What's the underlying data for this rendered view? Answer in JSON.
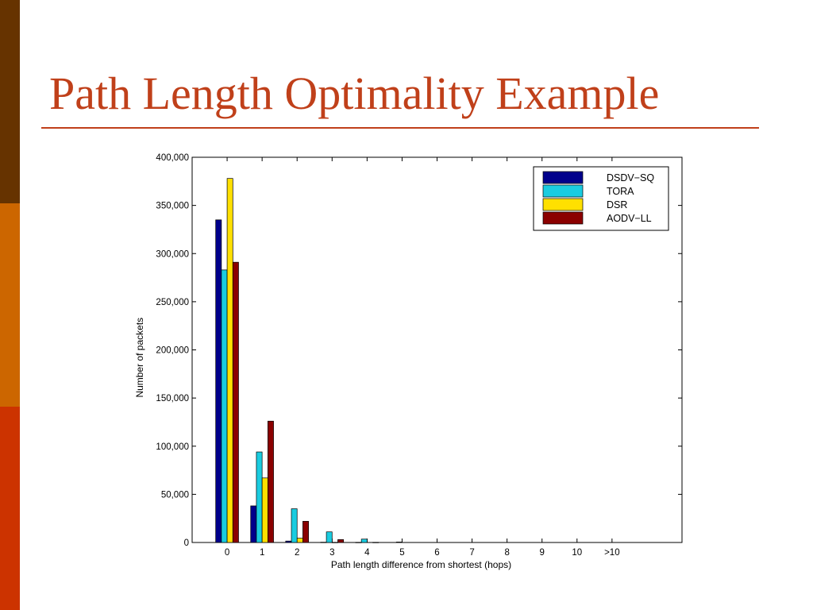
{
  "slide": {
    "title": "Path Length Optimality Example",
    "accent_colors": {
      "stripe_top": "#663300",
      "stripe_mid": "#CC6600",
      "stripe_bottom": "#CC3300",
      "title": "#C0401A",
      "rule": "#C0401A"
    }
  },
  "chart_data": {
    "type": "bar",
    "title": "",
    "xlabel": "Path length difference from shortest (hops)",
    "ylabel": "Number of packets",
    "categories": [
      "0",
      "1",
      "2",
      "3",
      "4",
      "5",
      "6",
      "7",
      "8",
      "9",
      "10",
      ">10"
    ],
    "ylim": [
      0,
      400000
    ],
    "yticks": [
      0,
      50000,
      100000,
      150000,
      200000,
      250000,
      300000,
      350000,
      400000
    ],
    "ytick_labels": [
      "0",
      "50,000",
      "100,000",
      "150,000",
      "200,000",
      "250,000",
      "300,000",
      "350,000",
      "400,000"
    ],
    "legend_position": "top-right",
    "grid": false,
    "series": [
      {
        "name": "DSDV−SQ",
        "color": "#00008B",
        "values": [
          335000,
          38000,
          1500,
          300,
          200,
          0,
          0,
          0,
          0,
          0,
          0,
          0
        ]
      },
      {
        "name": "TORA",
        "color": "#1ACCE0",
        "values": [
          283000,
          94000,
          35000,
          11000,
          3500,
          500,
          0,
          0,
          0,
          0,
          0,
          0
        ]
      },
      {
        "name": "DSR",
        "color": "#FFE000",
        "values": [
          378000,
          67000,
          4500,
          200,
          0,
          0,
          0,
          0,
          0,
          0,
          0,
          0
        ]
      },
      {
        "name": "AODV−LL",
        "color": "#8B0000",
        "values": [
          291000,
          126000,
          22000,
          3000,
          200,
          0,
          0,
          0,
          0,
          0,
          0,
          0
        ]
      }
    ]
  }
}
